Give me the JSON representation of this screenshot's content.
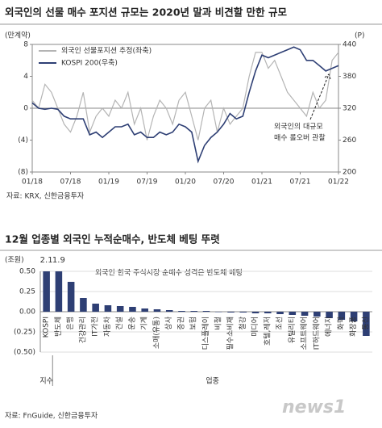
{
  "watermark": "news1",
  "chart_data": [
    {
      "type": "line",
      "title": "외국인의 선물 매수 포지션 규모는 2020년 말과 비견할 만한 규모",
      "ylabel": "(만계약)",
      "y2label": "(P)",
      "x": [
        "01/18",
        "02/18",
        "03/18",
        "04/18",
        "05/18",
        "06/18",
        "07/18",
        "08/18",
        "09/18",
        "10/18",
        "11/18",
        "12/18",
        "01/19",
        "02/19",
        "03/19",
        "04/19",
        "05/19",
        "06/19",
        "07/19",
        "08/19",
        "09/19",
        "10/19",
        "11/19",
        "12/19",
        "01/20",
        "02/20",
        "03/20",
        "04/20",
        "05/20",
        "06/20",
        "07/20",
        "08/20",
        "09/20",
        "10/20",
        "11/20",
        "12/20",
        "01/21",
        "02/21",
        "03/21",
        "04/21",
        "05/21",
        "06/21",
        "07/21",
        "08/21",
        "09/21",
        "10/21",
        "11/21",
        "12/21",
        "01/22"
      ],
      "xticks": [
        "01/18",
        "07/18",
        "01/19",
        "07/19",
        "01/20",
        "07/20",
        "01/21",
        "07/21",
        "01/22"
      ],
      "ylim": [
        -8,
        8
      ],
      "yticks": [
        8,
        4,
        0,
        {
          "value": -4,
          "label": "(4)"
        },
        {
          "value": -8,
          "label": "(8)"
        }
      ],
      "y2lim": [
        200,
        440
      ],
      "y2ticks": [
        440,
        380,
        320,
        260,
        200
      ],
      "series": [
        {
          "name": "외국인 선물포지션 추정(좌축)",
          "color": "#b4b4b4",
          "values": [
            1,
            0,
            3,
            2,
            0,
            -2,
            -3,
            -1,
            2,
            -3,
            -1,
            0,
            -1,
            1,
            0,
            2,
            -2,
            0,
            -4,
            -1,
            1,
            0,
            -2,
            1,
            2,
            -1,
            -4,
            0,
            1,
            -3,
            0,
            -2,
            -1,
            0,
            4,
            7,
            7,
            5,
            6,
            4,
            2,
            1,
            0,
            -1,
            2,
            0,
            1,
            6,
            7
          ]
        },
        {
          "name": "KOSPI 200(우축)",
          "color": "#2e3f74",
          "axis": "y2",
          "values": [
            330,
            320,
            318,
            320,
            318,
            305,
            300,
            300,
            300,
            270,
            275,
            265,
            275,
            285,
            285,
            290,
            270,
            275,
            265,
            265,
            275,
            270,
            275,
            290,
            285,
            275,
            220,
            250,
            265,
            275,
            290,
            310,
            300,
            305,
            350,
            390,
            420,
            415,
            420,
            425,
            430,
            435,
            430,
            410,
            410,
            400,
            390,
            395,
            400
          ]
        }
      ],
      "legend": "upper left",
      "annotation": [
        "외국인의 대규모",
        "매수 롤오버 관찰"
      ],
      "source": "자료: KRX, 신한금융투자"
    },
    {
      "type": "bar",
      "title": "12월 업종별 외국인 누적순매수, 반도체 베팅 뚜렷",
      "ylabel": "(조원)",
      "color": "#2e3f74",
      "categories": [
        "KOSPI",
        "반도체",
        "은행",
        "건강관리",
        "IT가전",
        "자동차",
        "건설",
        "운송",
        "기계",
        "소매(유통)",
        "상사",
        "증권",
        "보험",
        "디스플레이",
        "비철",
        "필수소비재",
        "철강",
        "미디어",
        "호텔,레저",
        "조선",
        "유틸리티",
        "소프트웨어",
        "IT하드웨어",
        "에너지",
        "화학",
        "화장품",
        "통신"
      ],
      "values": [
        2.1,
        1.9,
        0.37,
        0.17,
        0.1,
        0.08,
        0.07,
        0.06,
        0.04,
        0.03,
        0.02,
        0.01,
        0.01,
        0.01,
        0,
        -0.01,
        -0.01,
        -0.02,
        -0.02,
        -0.03,
        -0.04,
        -0.05,
        -0.06,
        -0.08,
        -0.1,
        -0.12,
        -0.3
      ],
      "value_labels": [
        "2.1",
        "1.9",
        null,
        null,
        null,
        null,
        null,
        null,
        null,
        null,
        null,
        null,
        null,
        null,
        null,
        null,
        null,
        null,
        null,
        null,
        null,
        null,
        null,
        null,
        null,
        null,
        null
      ],
      "ylim": [
        -0.5,
        0.5
      ],
      "yticks": [
        {
          "value": 0.5,
          "label": "0.50"
        },
        {
          "value": 0.25,
          "label": "0.25"
        },
        {
          "value": 0,
          "label": "0.00"
        },
        {
          "value": -0.25,
          "label": "(0.25)"
        },
        {
          "value": -0.5,
          "label": "(0.50)"
        }
      ],
      "annotation": "외국인 한국 주식시장 순매수 성격은 반도체 베팅",
      "group_labels": [
        "지수",
        "업종"
      ],
      "source": "자료: FnGuide, 신한금융투자"
    }
  ]
}
